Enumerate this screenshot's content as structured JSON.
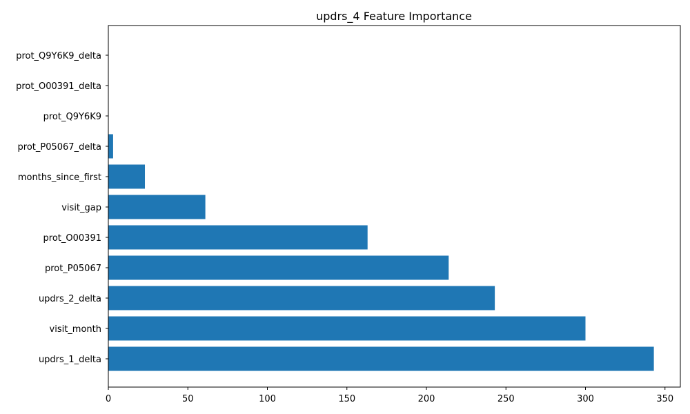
{
  "chart_data": {
    "type": "bar",
    "orientation": "horizontal",
    "title": "updrs_4 Feature Importance",
    "xlabel": "",
    "ylabel": "",
    "categories": [
      "updrs_1_delta",
      "visit_month",
      "updrs_2_delta",
      "prot_P05067",
      "prot_O00391",
      "visit_gap",
      "months_since_first",
      "prot_P05067_delta",
      "prot_Q9Y6K9",
      "prot_O00391_delta",
      "prot_Q9Y6K9_delta"
    ],
    "values": [
      343,
      300,
      243,
      214,
      163,
      61,
      23,
      3,
      0,
      0,
      0
    ],
    "xlim": [
      0,
      360
    ],
    "xticks": [
      0,
      50,
      100,
      150,
      200,
      250,
      300,
      350
    ],
    "grid": false,
    "bar_color": "#1f77b4"
  }
}
